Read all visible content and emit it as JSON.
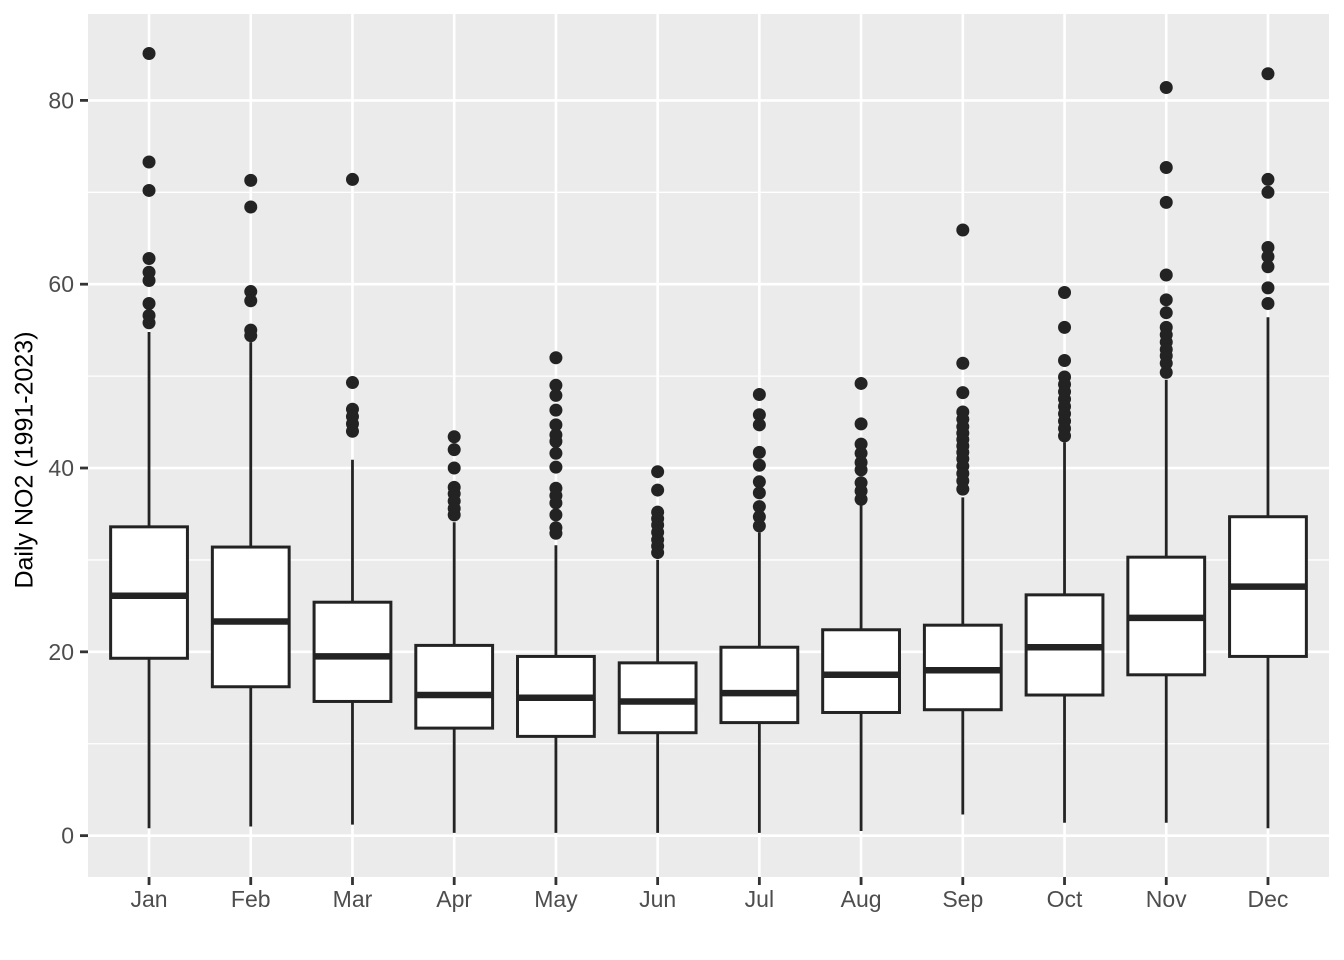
{
  "figure": {
    "background_color": "#FFFFFF",
    "panel_color": "#EBEBEB",
    "gridline_color": "#FFFFFF",
    "box_fill": "#FFFFFF",
    "stroke_color": "#232323",
    "tick_mark_color": "#333333",
    "axis_text_color": "#4D4D4D",
    "axis_title_color": "#000000"
  },
  "chart_data": {
    "type": "boxplot",
    "title": "",
    "xlabel": "",
    "ylabel": "Daily NO2 (1991-2023)",
    "categories": [
      "Jan",
      "Feb",
      "Mar",
      "Apr",
      "May",
      "Jun",
      "Jul",
      "Aug",
      "Sep",
      "Oct",
      "Nov",
      "Dec"
    ],
    "yticks": [
      0,
      20,
      40,
      60,
      80
    ],
    "yticks_minor": [
      10,
      30,
      50,
      70
    ],
    "ylim": [
      -4.5,
      89.4
    ],
    "grid": "white major and minor horizontal lines plus vertical line per category on grey panel",
    "legend": "none",
    "boxes": [
      {
        "month": "Jan",
        "whisker_low": 0.8,
        "q1": 19.3,
        "median": 26.1,
        "q3": 33.6,
        "whisker_high": 54.8,
        "outliers": [
          85.1,
          73.3,
          70.2,
          62.8,
          61.3,
          60.4,
          57.9,
          56.6,
          55.8
        ]
      },
      {
        "month": "Feb",
        "whisker_low": 1.0,
        "q1": 16.2,
        "median": 23.3,
        "q3": 31.4,
        "whisker_high": 53.7,
        "outliers": [
          71.3,
          68.4,
          59.2,
          58.2,
          55.0,
          54.4
        ]
      },
      {
        "month": "Mar",
        "whisker_low": 1.2,
        "q1": 14.6,
        "median": 19.5,
        "q3": 25.4,
        "whisker_high": 40.9,
        "outliers": [
          71.4,
          49.3,
          46.4,
          45.6,
          44.8,
          44.0
        ]
      },
      {
        "month": "Apr",
        "whisker_low": 0.3,
        "q1": 11.7,
        "median": 15.3,
        "q3": 20.7,
        "whisker_high": 34.1,
        "outliers": [
          43.4,
          42.0,
          40.0,
          37.9,
          37.2,
          36.4,
          35.6,
          34.9
        ]
      },
      {
        "month": "May",
        "whisker_low": 0.3,
        "q1": 10.8,
        "median": 15.0,
        "q3": 19.5,
        "whisker_high": 31.6,
        "outliers": [
          52.0,
          49.0,
          47.9,
          46.3,
          44.7,
          43.6,
          42.9,
          41.6,
          40.1,
          37.8,
          37.0,
          36.2,
          34.9,
          33.5,
          32.9
        ]
      },
      {
        "month": "Jun",
        "whisker_low": 0.3,
        "q1": 11.2,
        "median": 14.6,
        "q3": 18.8,
        "whisker_high": 30.0,
        "outliers": [
          39.6,
          37.6,
          35.2,
          34.5,
          33.8,
          33.0,
          32.2,
          31.5,
          30.8
        ]
      },
      {
        "month": "Jul",
        "whisker_low": 0.3,
        "q1": 12.3,
        "median": 15.5,
        "q3": 20.5,
        "whisker_high": 33.0,
        "outliers": [
          48.0,
          45.8,
          44.7,
          41.7,
          40.3,
          38.5,
          37.3,
          35.8,
          34.7,
          33.7
        ]
      },
      {
        "month": "Aug",
        "whisker_low": 0.5,
        "q1": 13.4,
        "median": 17.5,
        "q3": 22.4,
        "whisker_high": 36.0,
        "outliers": [
          49.2,
          44.8,
          42.6,
          41.6,
          40.6,
          39.8,
          38.4,
          37.5,
          36.6
        ]
      },
      {
        "month": "Sep",
        "whisker_low": 2.3,
        "q1": 13.7,
        "median": 18.0,
        "q3": 22.9,
        "whisker_high": 36.8,
        "outliers": [
          65.9,
          51.4,
          48.2,
          46.1,
          45.3,
          44.5,
          43.8,
          43.1,
          42.4,
          41.7,
          41.0,
          40.2,
          39.4,
          38.6,
          37.7
        ]
      },
      {
        "month": "Oct",
        "whisker_low": 1.4,
        "q1": 15.3,
        "median": 20.5,
        "q3": 26.2,
        "whisker_high": 42.8,
        "outliers": [
          59.1,
          55.3,
          51.7,
          49.9,
          49.1,
          48.3,
          47.5,
          46.7,
          45.9,
          45.1,
          44.3,
          43.5
        ]
      },
      {
        "month": "Nov",
        "whisker_low": 1.4,
        "q1": 17.5,
        "median": 23.7,
        "q3": 30.3,
        "whisker_high": 49.6,
        "outliers": [
          81.4,
          72.7,
          68.9,
          61.0,
          58.3,
          56.9,
          55.3,
          54.5,
          53.7,
          52.9,
          52.2,
          51.4,
          50.4
        ]
      },
      {
        "month": "Dec",
        "whisker_low": 0.8,
        "q1": 19.5,
        "median": 27.1,
        "q3": 34.7,
        "whisker_high": 56.4,
        "outliers": [
          82.9,
          71.4,
          70.0,
          64.0,
          63.0,
          61.9,
          59.6,
          57.9
        ]
      }
    ]
  }
}
